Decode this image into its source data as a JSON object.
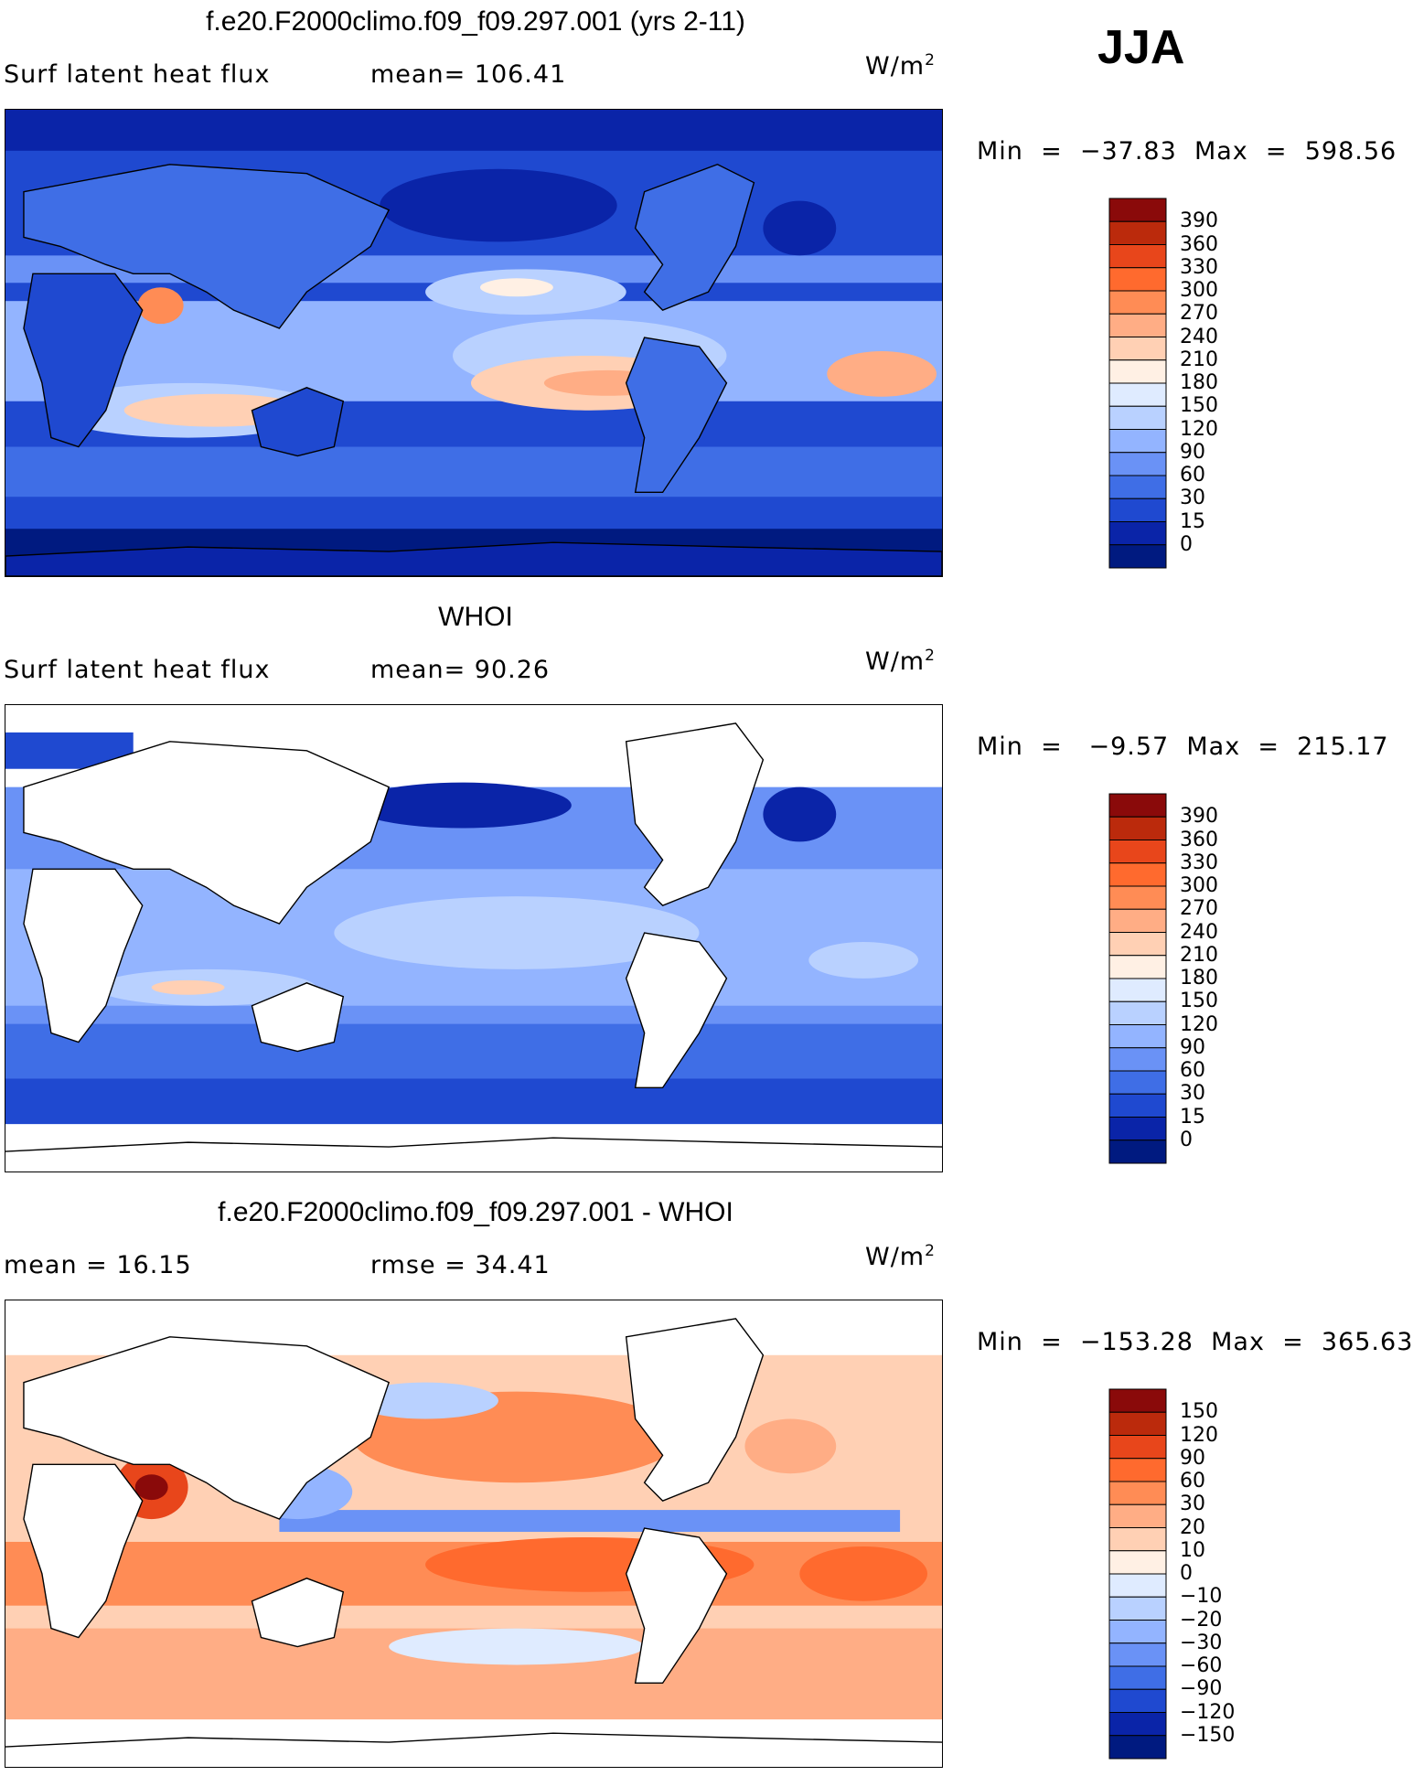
{
  "season": "JJA",
  "panels": [
    {
      "title": "f.e20.F2000climo.f09_f09.297.001 (yrs 2-11)",
      "left_label": "Surf latent heat flux",
      "mid_label": "mean=  106.41",
      "units": "W/m",
      "units_sup": "2",
      "minmax": "Min  =  −37.83  Max  =  598.56",
      "colorbar": {
        "labels": [
          "390",
          "360",
          "330",
          "300",
          "270",
          "240",
          "210",
          "180",
          "150",
          "120",
          "90",
          "60",
          "30",
          "15",
          "0"
        ],
        "colors": [
          "#8a0a0a",
          "#bb2a0c",
          "#e8461b",
          "#ff6a2e",
          "#ff8c55",
          "#ffad85",
          "#ffd0b4",
          "#fff0e4",
          "#dfebff",
          "#b9d1ff",
          "#93b4ff",
          "#6a92f6",
          "#3f6ee6",
          "#1f49d0",
          "#0a24a8",
          "#001a80"
        ]
      }
    },
    {
      "title": "WHOI",
      "left_label": "Surf latent heat flux",
      "mid_label": "mean=   90.26",
      "units": "W/m",
      "units_sup": "2",
      "minmax": "Min  =   −9.57  Max  =  215.17",
      "colorbar": {
        "labels": [
          "390",
          "360",
          "330",
          "300",
          "270",
          "240",
          "210",
          "180",
          "150",
          "120",
          "90",
          "60",
          "30",
          "15",
          "0"
        ],
        "colors": [
          "#8a0a0a",
          "#bb2a0c",
          "#e8461b",
          "#ff6a2e",
          "#ff8c55",
          "#ffad85",
          "#ffd0b4",
          "#fff0e4",
          "#dfebff",
          "#b9d1ff",
          "#93b4ff",
          "#6a92f6",
          "#3f6ee6",
          "#1f49d0",
          "#0a24a8",
          "#001a80"
        ]
      }
    },
    {
      "title": "f.e20.F2000climo.f09_f09.297.001 - WHOI",
      "left_label": "mean =   16.15",
      "mid_label": "rmse =   34.41",
      "units": "W/m",
      "units_sup": "2",
      "minmax": "Min  =  −153.28  Max  =  365.63",
      "colorbar": {
        "labels": [
          "150",
          "120",
          "90",
          "60",
          "30",
          "20",
          "10",
          "0",
          "−10",
          "−20",
          "−30",
          "−60",
          "−90",
          "−120",
          "−150"
        ],
        "colors": [
          "#8a0a0a",
          "#bb2a0c",
          "#e8461b",
          "#ff6a2e",
          "#ff8c55",
          "#ffad85",
          "#ffd0b4",
          "#fff0e4",
          "#dfebff",
          "#b9d1ff",
          "#93b4ff",
          "#6a92f6",
          "#3f6ee6",
          "#1f49d0",
          "#0a24a8",
          "#001a80"
        ]
      }
    }
  ]
}
